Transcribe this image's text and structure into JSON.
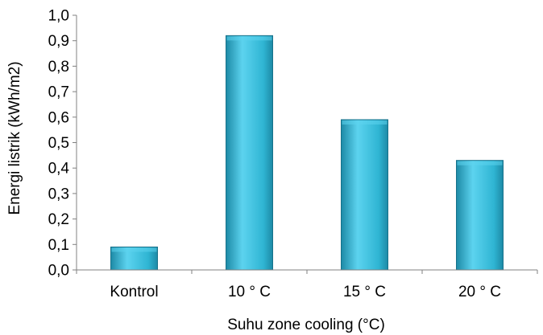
{
  "chart_data": {
    "type": "bar",
    "categories": [
      "Kontrol",
      "10 ° C",
      "15 ° C",
      "20 ° C"
    ],
    "values": [
      0.09,
      0.92,
      0.59,
      0.43
    ],
    "xlabel": "Suhu zone cooling (°C)",
    "ylabel": "Energi listrik (kWh/m2)",
    "ylim": [
      0,
      1.0
    ],
    "yticks": [
      "0,0",
      "0,1",
      "0,2",
      "0,3",
      "0,4",
      "0,5",
      "0,6",
      "0,7",
      "0,8",
      "0,9",
      "1,0"
    ],
    "grid": false,
    "legend": "none",
    "colors": {
      "bar_light": "#5cd3ef",
      "bar_main": "#2fb5d3",
      "bar_dark": "#1d8aa6",
      "bar_edge": "#17718a",
      "axis": "#808080"
    }
  }
}
